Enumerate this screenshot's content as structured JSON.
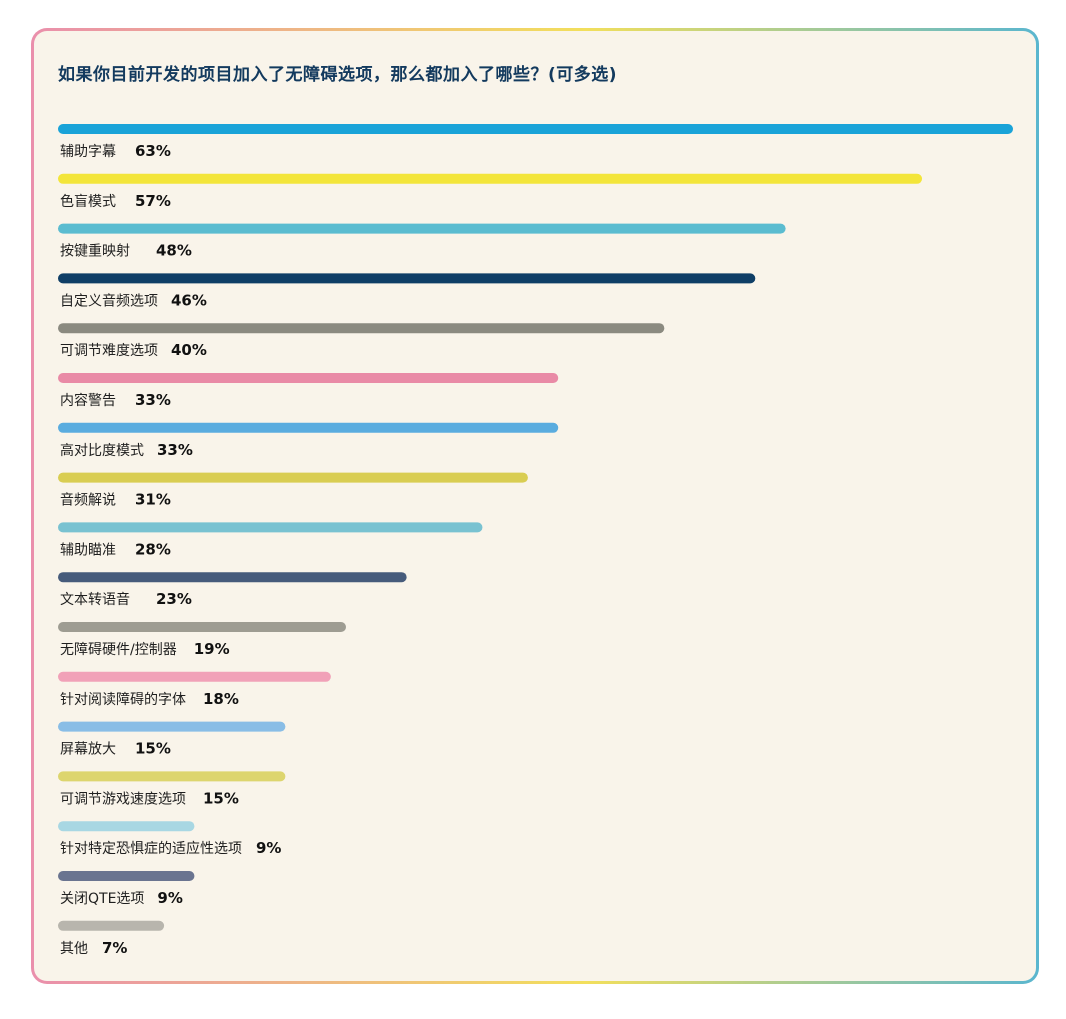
{
  "chart_data": {
    "type": "bar",
    "orientation": "horizontal",
    "title": "如果你目前开发的项目加入了无障碍选项，那么都加入了哪些？(可多选)",
    "value_suffix": "%",
    "xlim": [
      0,
      63
    ],
    "grid": false,
    "categories": [
      "辅助字幕",
      "色盲模式",
      "按键重映射",
      "自定义音频选项",
      "可调节难度选项",
      "内容警告",
      "高对比度模式",
      "音频解说",
      "辅助瞄准",
      "文本转语音",
      "无障碍硬件/控制器",
      "针对阅读障碍的字体",
      "屏幕放大",
      "可调节游戏速度选项",
      "针对特定恐惧症的适应性选项",
      "关闭QTE选项",
      "其他"
    ],
    "values": [
      63,
      57,
      48,
      46,
      40,
      33,
      33,
      31,
      28,
      23,
      19,
      18,
      15,
      15,
      9,
      9,
      7
    ],
    "colors": [
      "#1aa3d8",
      "#f3e53a",
      "#5bbcd0",
      "#0f3e66",
      "#8b8a80",
      "#e98aa6",
      "#5aacdf",
      "#d9cd52",
      "#79c2d1",
      "#465b7b",
      "#9e9c92",
      "#f1a1b8",
      "#89bde6",
      "#ddd56e",
      "#a8d7e3",
      "#6a7490",
      "#b8b5ad"
    ]
  }
}
